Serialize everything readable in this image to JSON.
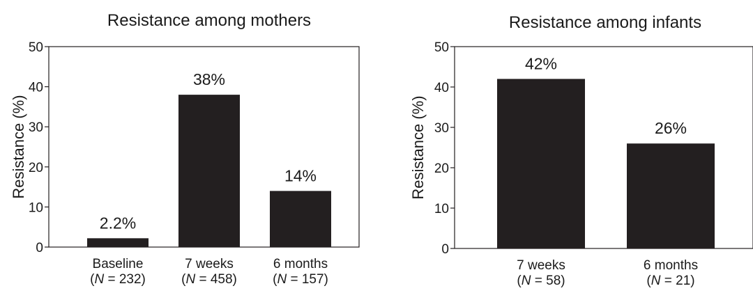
{
  "chart_data": [
    {
      "type": "bar",
      "title": "Resistance among mothers",
      "ylabel": "Resistance (%)",
      "xlabel": "",
      "ylim": [
        0,
        50
      ],
      "yticks": [
        "0",
        "10",
        "20",
        "30",
        "40",
        "50"
      ],
      "categories": [
        "Baseline",
        "7 weeks",
        "6 months"
      ],
      "category_n": [
        "(N = 232)",
        "(N = 458)",
        "(N = 157)"
      ],
      "values": [
        2.2,
        38,
        14
      ],
      "value_labels": [
        "2.2%",
        "38%",
        "14%"
      ],
      "bar_color": "#231f20",
      "grid": false
    },
    {
      "type": "bar",
      "title": "Resistance among infants",
      "ylabel": "Resistance (%)",
      "xlabel": "",
      "ylim": [
        0,
        50
      ],
      "yticks": [
        "0",
        "10",
        "20",
        "30",
        "40",
        "50"
      ],
      "categories": [
        "7 weeks",
        "6 months"
      ],
      "category_n": [
        "(N = 58)",
        "(N = 21)"
      ],
      "values": [
        42,
        26
      ],
      "value_labels": [
        "42%",
        "26%"
      ],
      "bar_color": "#231f20",
      "grid": false
    }
  ]
}
